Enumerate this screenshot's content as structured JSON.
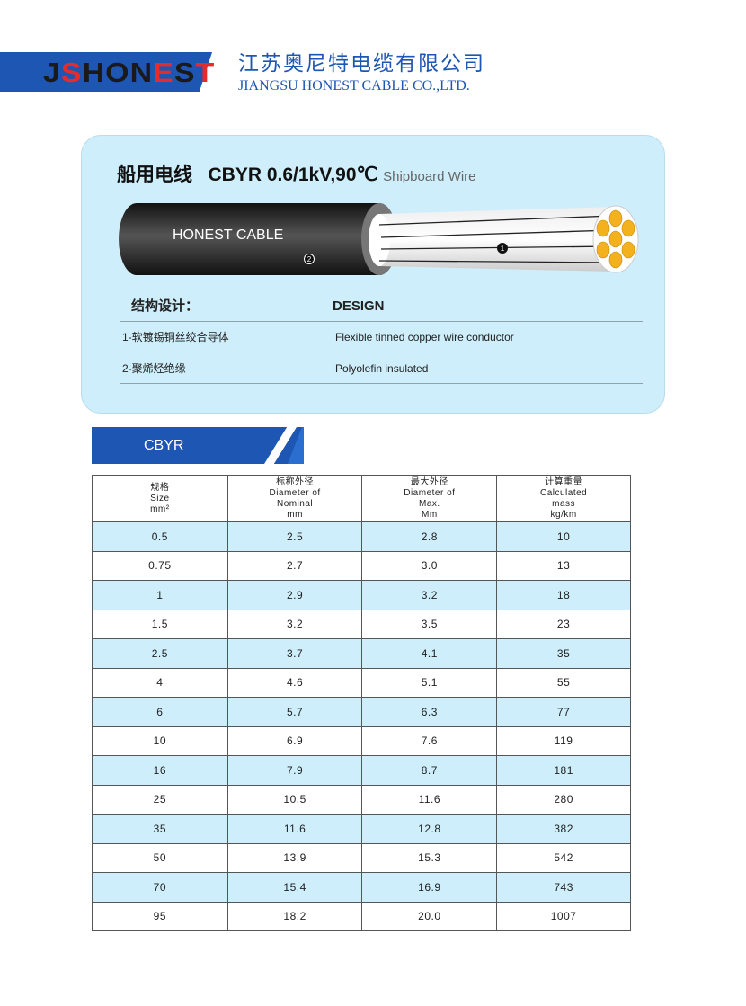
{
  "header": {
    "logo": "JSHONEST",
    "company_cn": "江苏奥尼特电缆有限公司",
    "company_en": "JIANGSU HONEST CABLE CO.,LTD."
  },
  "product": {
    "title_cn": "船用电线",
    "title_model": "CBYR 0.6/1kV,90℃",
    "title_en": "Shipboard Wire",
    "cable_print": "HONEST CABLE",
    "marker_1": "1",
    "marker_2": "2"
  },
  "design": {
    "heading_cn": "结构设计：",
    "heading_en": "DESIGN",
    "items": [
      {
        "cn": "1-软镀锡铜丝绞合导体",
        "en": "Flexible tinned copper wire conductor"
      },
      {
        "cn": "2-聚烯烃绝缘",
        "en": "Polyolefin insulated"
      }
    ]
  },
  "section_label": "CBYR",
  "table": {
    "headers": [
      [
        "规格",
        "Size",
        "mm²"
      ],
      [
        "标称外径",
        "Diameter of",
        "Nominal",
        "mm"
      ],
      [
        "最大外径",
        "Diameter of",
        "Max.",
        "Mm"
      ],
      [
        "计算重量",
        "Calculated",
        "mass",
        "kg/km"
      ]
    ],
    "rows": [
      [
        "0.5",
        "2.5",
        "2.8",
        "10"
      ],
      [
        "0.75",
        "2.7",
        "3.0",
        "13"
      ],
      [
        "1",
        "2.9",
        "3.2",
        "18"
      ],
      [
        "1.5",
        "3.2",
        "3.5",
        "23"
      ],
      [
        "2.5",
        "3.7",
        "4.1",
        "35"
      ],
      [
        "4",
        "4.6",
        "5.1",
        "55"
      ],
      [
        "6",
        "5.7",
        "6.3",
        "77"
      ],
      [
        "10",
        "6.9",
        "7.6",
        "119"
      ],
      [
        "16",
        "7.9",
        "8.7",
        "181"
      ],
      [
        "25",
        "10.5",
        "11.6",
        "280"
      ],
      [
        "35",
        "11.6",
        "12.8",
        "382"
      ],
      [
        "50",
        "13.9",
        "15.3",
        "542"
      ],
      [
        "70",
        "15.4",
        "16.9",
        "743"
      ],
      [
        "95",
        "18.2",
        "20.0",
        "1007"
      ]
    ]
  }
}
